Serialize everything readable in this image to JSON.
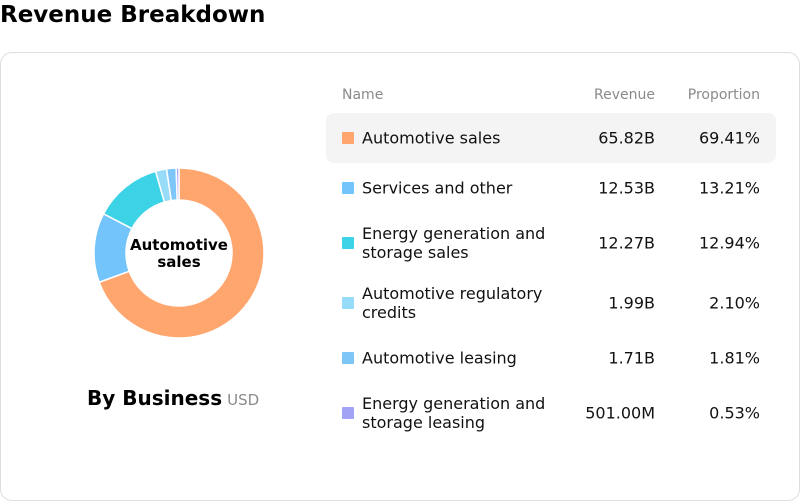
{
  "title": "Revenue Breakdown",
  "chart": {
    "center_label": "Automotive sales",
    "caption": "By Business",
    "unit": "USD"
  },
  "table": {
    "headers": {
      "name": "Name",
      "revenue": "Revenue",
      "proportion": "Proportion"
    },
    "rows": [
      {
        "name": "Automotive sales",
        "revenue": "65.82B",
        "proportion": "69.41%",
        "percent": 69.41,
        "color": "#FFA66E"
      },
      {
        "name": "Services and other",
        "revenue": "12.53B",
        "proportion": "13.21%",
        "percent": 13.21,
        "color": "#73C4FA"
      },
      {
        "name": "Energy generation and storage sales",
        "revenue": "12.27B",
        "proportion": "12.94%",
        "percent": 12.94,
        "color": "#3DD3E6"
      },
      {
        "name": "Automotive regulatory credits",
        "revenue": "1.99B",
        "proportion": "2.10%",
        "percent": 2.1,
        "color": "#96DBF8"
      },
      {
        "name": "Automotive leasing",
        "revenue": "1.71B",
        "proportion": "1.81%",
        "percent": 1.81,
        "color": "#7DC6F7"
      },
      {
        "name": "Energy generation and storage leasing",
        "revenue": "501.00M",
        "proportion": "0.53%",
        "percent": 0.53,
        "color": "#A3A3F5"
      }
    ]
  }
}
